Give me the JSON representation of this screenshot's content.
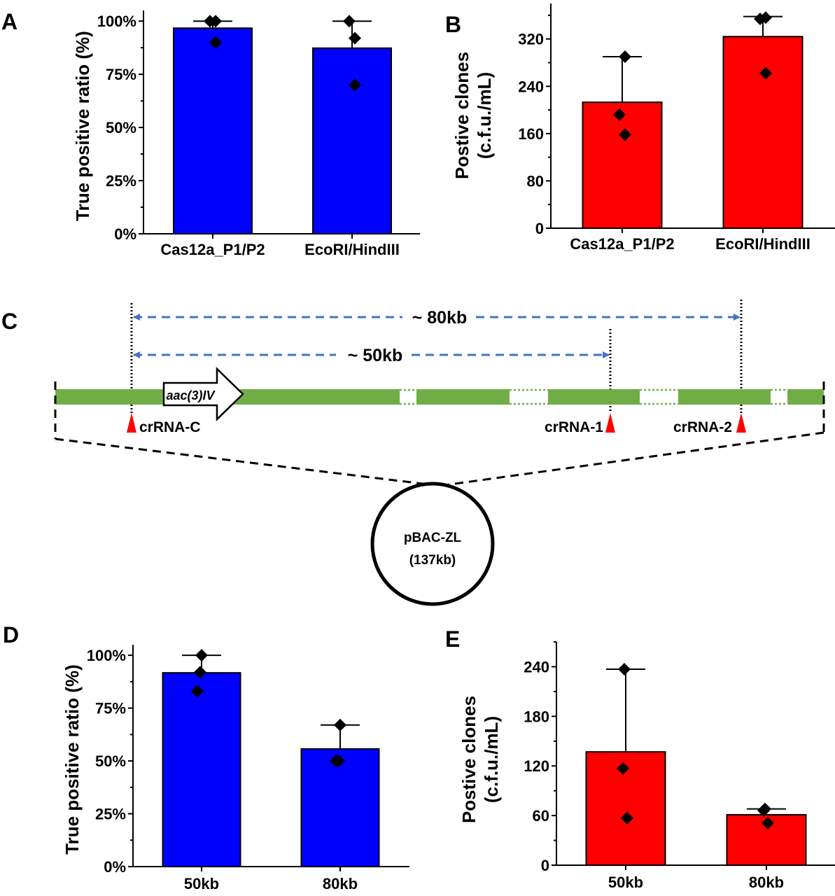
{
  "panels": [
    "A",
    "B",
    "C",
    "D",
    "E"
  ],
  "chart_data": [
    {
      "panel": "A",
      "type": "bar",
      "categories": [
        "Cas12a_P1/P2",
        "EcoRI/HindIII"
      ],
      "values": [
        96.7,
        87.3
      ],
      "error": [
        3.3,
        12.7
      ],
      "points": [
        [
          100,
          100,
          90
        ],
        [
          100,
          92,
          70
        ]
      ],
      "ylabel": [
        "True positive ratio (%)"
      ],
      "ylim": [
        0,
        105
      ],
      "yticks": [
        0,
        25,
        50,
        75,
        100
      ],
      "ytick_labels": [
        "0%",
        "25%",
        "50%",
        "75%",
        "100%"
      ],
      "bar_color": "#0000ff",
      "grid": false
    },
    {
      "panel": "B",
      "type": "bar",
      "categories": [
        "Cas12a_P1/P2",
        "EcoRI/HindIII"
      ],
      "values": [
        213,
        324
      ],
      "error": [
        77,
        34
      ],
      "points": [
        [
          290,
          192,
          158
        ],
        [
          356,
          354,
          262
        ]
      ],
      "ylabel": [
        "Postive clones",
        "(c.f.u./mL)"
      ],
      "ylim": [
        0,
        380
      ],
      "yticks": [
        0,
        80,
        160,
        240,
        320
      ],
      "ytick_labels": [
        "0",
        "80",
        "160",
        "240",
        "320"
      ],
      "bar_color": "#ff0000",
      "grid": false
    },
    {
      "panel": "D",
      "type": "bar",
      "categories": [
        "50kb",
        "80kb"
      ],
      "values": [
        91.7,
        55.7
      ],
      "error": [
        8.3,
        11.3
      ],
      "points": [
        [
          100,
          92,
          83
        ],
        [
          67,
          50,
          50
        ]
      ],
      "ylabel": [
        "True positive ratio (%)"
      ],
      "ylim": [
        0,
        105
      ],
      "yticks": [
        0,
        25,
        50,
        75,
        100
      ],
      "ytick_labels": [
        "0%",
        "25%",
        "50%",
        "75%",
        "100%"
      ],
      "bar_color": "#0000ff",
      "grid": false
    },
    {
      "panel": "E",
      "type": "bar",
      "categories": [
        "50kb",
        "80kb"
      ],
      "values": [
        137,
        61
      ],
      "error": [
        100,
        7
      ],
      "points": [
        [
          237,
          117,
          57
        ],
        [
          68,
          66,
          51
        ]
      ],
      "ylabel": [
        "Postive clones",
        "(c.f.u./mL)"
      ],
      "ylim": [
        0,
        270
      ],
      "yticks": [
        0,
        60,
        120,
        180,
        240
      ],
      "ytick_labels": [
        "0",
        "60",
        "120",
        "180",
        "240"
      ],
      "bar_color": "#ff0000",
      "grid": false
    }
  ],
  "diagram": {
    "span_80": "~ 80kb",
    "span_50": "~ 50kb",
    "gene": "aac(3)IV",
    "crrna_c": "crRNA-C",
    "crrna_1": "crRNA-1",
    "crrna_2": "crRNA-2",
    "plasmid_name": "pBAC-ZL",
    "plasmid_size": "(137kb)",
    "colors": {
      "backbone": "#70ad47",
      "span_arrow": "#4472c4",
      "cut_site": "#ff0000"
    }
  }
}
